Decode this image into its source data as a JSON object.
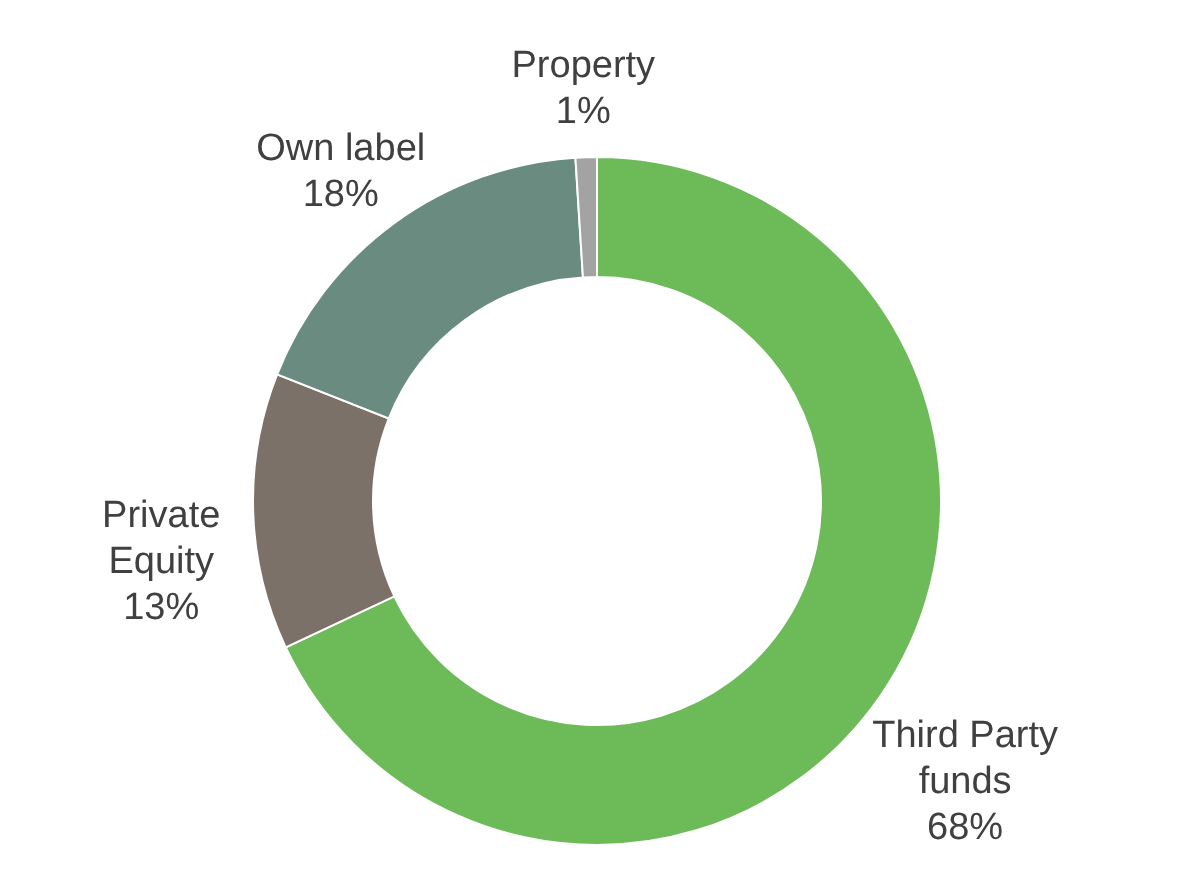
{
  "chart_data": {
    "type": "donut",
    "categories": [
      "Third Party funds",
      "Private Equity",
      "Own label",
      "Property"
    ],
    "values": [
      68,
      13,
      18,
      1
    ],
    "value_labels": [
      "68%",
      "13%",
      "18%",
      "1%"
    ],
    "colors": [
      "#6dbb58",
      "#7b7169",
      "#6a8b80",
      "#a3a3a3"
    ],
    "legend": false
  }
}
